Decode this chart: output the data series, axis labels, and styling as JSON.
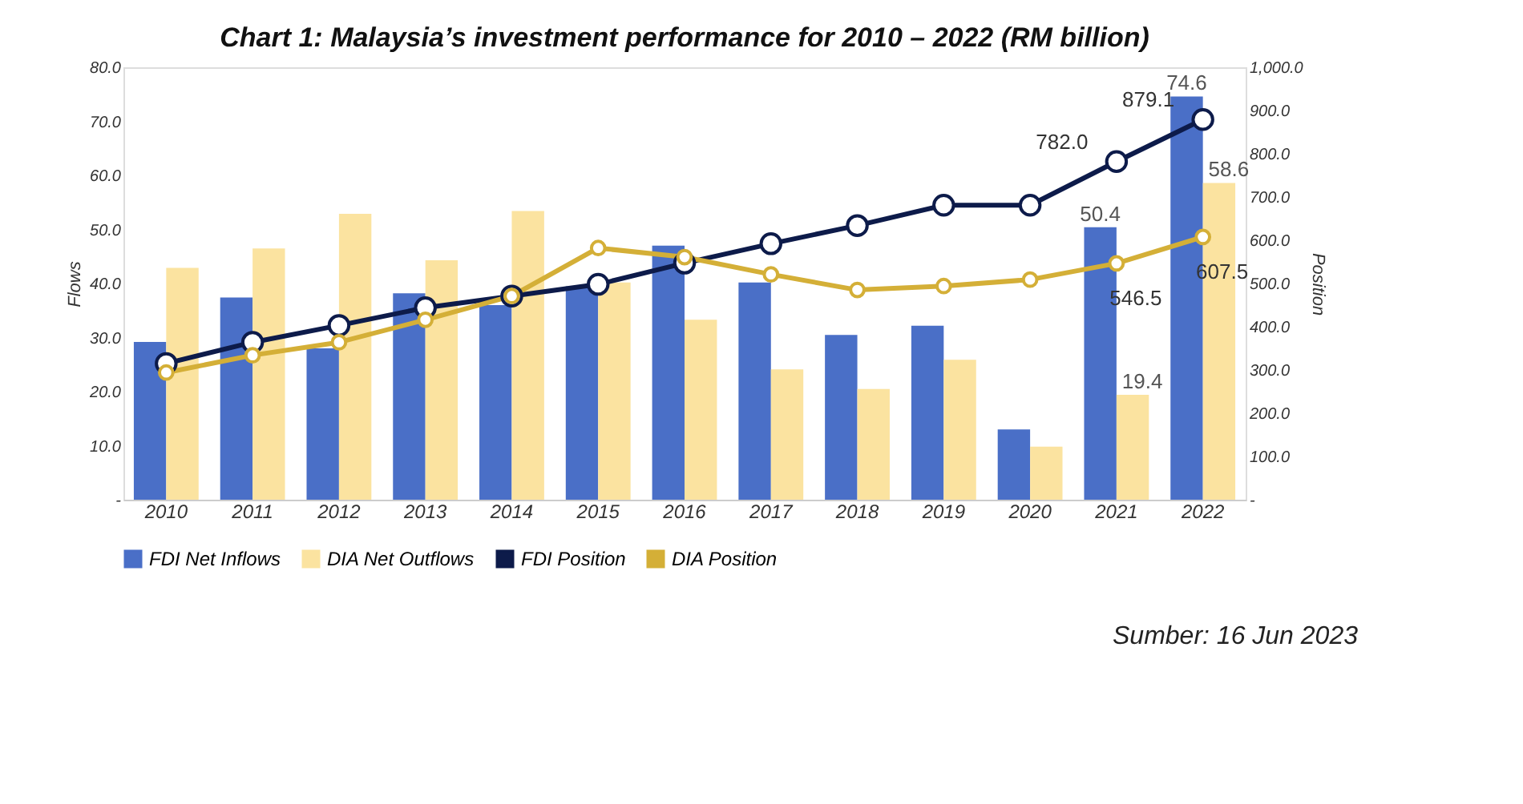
{
  "chart_data": {
    "type": "bar",
    "title": "Chart 1: Malaysia’s investment performance for 2010 – 2022 (RM billion)",
    "categories": [
      "2010",
      "2011",
      "2012",
      "2013",
      "2014",
      "2015",
      "2016",
      "2017",
      "2018",
      "2019",
      "2020",
      "2021",
      "2022"
    ],
    "series": [
      {
        "name": "FDI Net Inflows",
        "axis": "y",
        "color": "#4a6fc7",
        "values": [
          29.2,
          37.4,
          28.0,
          38.2,
          36.0,
          39.5,
          47.0,
          40.2,
          30.5,
          32.2,
          13.0,
          50.4,
          74.6
        ],
        "value_labels": [
          null,
          null,
          null,
          null,
          null,
          null,
          null,
          null,
          null,
          null,
          null,
          "50.4",
          "74.6"
        ]
      },
      {
        "name": "DIA Net Outflows",
        "axis": "y",
        "color": "#fbe3a0",
        "values": [
          42.9,
          46.5,
          52.9,
          44.3,
          53.4,
          40.2,
          33.3,
          24.1,
          20.5,
          25.9,
          9.8,
          19.4,
          58.6
        ],
        "value_labels": [
          null,
          null,
          null,
          null,
          null,
          null,
          null,
          null,
          null,
          null,
          null,
          "19.4",
          "58.6"
        ]
      },
      {
        "name": "FDI Position",
        "type": "line",
        "axis": "y2",
        "color": "#0d1b4a",
        "values": [
          315,
          364,
          403,
          444,
          471,
          498,
          547,
          592,
          634,
          681,
          681,
          782.0,
          879.1
        ],
        "value_labels": [
          null,
          null,
          null,
          null,
          null,
          null,
          null,
          null,
          null,
          null,
          null,
          "782.0",
          "879.1"
        ]
      },
      {
        "name": "DIA Position",
        "type": "line",
        "axis": "y2",
        "color": "#d4af37",
        "values": [
          294,
          334,
          364,
          416,
          471,
          582,
          561,
          521,
          485,
          494,
          509,
          546.5,
          607.5
        ],
        "value_labels": [
          null,
          null,
          null,
          null,
          null,
          null,
          null,
          null,
          null,
          null,
          null,
          "546.5",
          "607.5"
        ]
      }
    ],
    "ylabel": "Flows",
    "y2label": "Position",
    "ylim": [
      0,
      80
    ],
    "yticks": [
      {
        "value": 0,
        "label": "-"
      },
      {
        "value": 10,
        "label": "10.0"
      },
      {
        "value": 20,
        "label": "20.0"
      },
      {
        "value": 30,
        "label": "30.0"
      },
      {
        "value": 40,
        "label": "40.0"
      },
      {
        "value": 50,
        "label": "50.0"
      },
      {
        "value": 60,
        "label": "60.0"
      },
      {
        "value": 70,
        "label": "70.0"
      },
      {
        "value": 80,
        "label": "80.0"
      }
    ],
    "y2lim": [
      0,
      1000
    ],
    "y2ticks": [
      {
        "value": 0,
        "label": "-"
      },
      {
        "value": 100,
        "label": "100.0"
      },
      {
        "value": 200,
        "label": "200.0"
      },
      {
        "value": 300,
        "label": "300.0"
      },
      {
        "value": 400,
        "label": "400.0"
      },
      {
        "value": 500,
        "label": "500.0"
      },
      {
        "value": 600,
        "label": "600.0"
      },
      {
        "value": 700,
        "label": "700.0"
      },
      {
        "value": 800,
        "label": "800.0"
      },
      {
        "value": 900,
        "label": "900.0"
      },
      {
        "value": 1000,
        "label": "1,000.0"
      }
    ],
    "marker": "circle",
    "line_style": "solid",
    "grid": false,
    "legend": "bottom",
    "annotations": [
      "Sumber: 16 Jun 2023"
    ]
  }
}
